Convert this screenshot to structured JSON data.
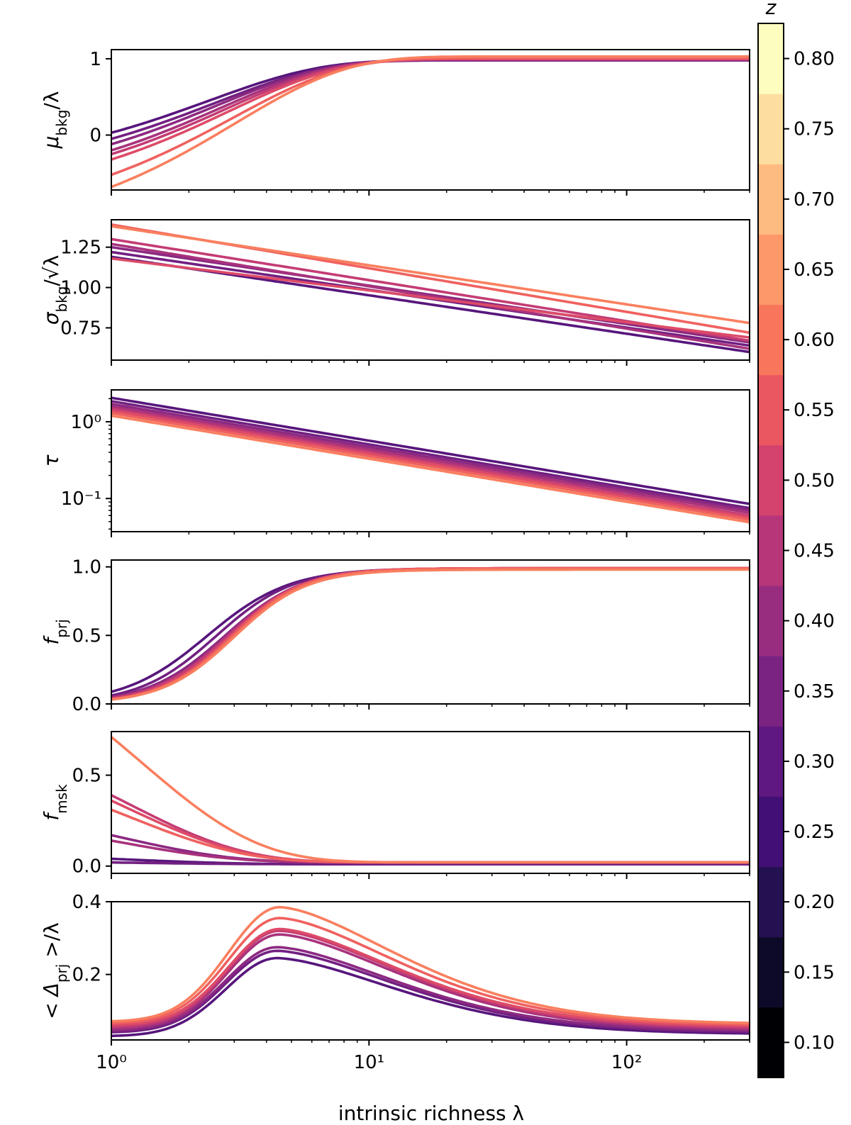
{
  "chart_data": {
    "type": "line",
    "title": "",
    "xlabel": "intrinsic richness λ",
    "xscale": "log",
    "xlim": [
      1,
      300
    ],
    "x_ticks": [
      {
        "value": 1,
        "base": "10",
        "exp": "0"
      },
      {
        "value": 10,
        "base": "10",
        "exp": "1"
      },
      {
        "value": 100,
        "base": "10",
        "exp": "2"
      }
    ],
    "colorbar": {
      "label": "z",
      "range": [
        0.075,
        0.825
      ],
      "ticks": [
        {
          "value": 0.1,
          "label": "0.10"
        },
        {
          "value": 0.15,
          "label": "0.15"
        },
        {
          "value": 0.2,
          "label": "0.20"
        },
        {
          "value": 0.25,
          "label": "0.25"
        },
        {
          "value": 0.3,
          "label": "0.30"
        },
        {
          "value": 0.35,
          "label": "0.35"
        },
        {
          "value": 0.4,
          "label": "0.40"
        },
        {
          "value": 0.45,
          "label": "0.45"
        },
        {
          "value": 0.5,
          "label": "0.50"
        },
        {
          "value": 0.55,
          "label": "0.55"
        },
        {
          "value": 0.6,
          "label": "0.60"
        },
        {
          "value": 0.65,
          "label": "0.65"
        },
        {
          "value": 0.7,
          "label": "0.70"
        },
        {
          "value": 0.75,
          "label": "0.75"
        },
        {
          "value": 0.8,
          "label": "0.80"
        }
      ],
      "colors": [
        "#000004",
        "#0d0a29",
        "#231151",
        "#410f75",
        "#5f187f",
        "#7b2382",
        "#982d80",
        "#b63679",
        "#d3436e",
        "#eb5760",
        "#f8765c",
        "#fd9869",
        "#febb81",
        "#fddea0",
        "#fcfdbf"
      ]
    },
    "series_z": [
      0.275,
      0.325,
      0.375,
      0.425,
      0.475,
      0.525,
      0.575,
      0.625
    ],
    "panels": [
      {
        "id": "mu_bkg",
        "ylabel": {
          "main": "μ",
          "sub": "bkg",
          "tail": "/λ"
        },
        "yscale": "linear",
        "ylim": [
          -0.72,
          1.12
        ],
        "yticks": [
          {
            "value": 0,
            "label": "0"
          },
          {
            "value": 1,
            "label": "1"
          }
        ],
        "model": "exp_approach",
        "series": [
          {
            "z": 0.275,
            "start": 0.03,
            "end": 0.98,
            "k": 0.42
          },
          {
            "z": 0.325,
            "start": -0.05,
            "end": 0.98,
            "k": 0.4
          },
          {
            "z": 0.375,
            "start": -0.12,
            "end": 0.99,
            "k": 0.39
          },
          {
            "z": 0.425,
            "start": -0.2,
            "end": 0.99,
            "k": 0.38
          },
          {
            "z": 0.475,
            "start": -0.25,
            "end": 1.0,
            "k": 0.36
          },
          {
            "z": 0.525,
            "start": -0.32,
            "end": 1.0,
            "k": 0.35
          },
          {
            "z": 0.575,
            "start": -0.52,
            "end": 1.01,
            "k": 0.34
          },
          {
            "z": 0.625,
            "start": -0.68,
            "end": 1.03,
            "k": 0.33
          }
        ]
      },
      {
        "id": "sigma_bkg",
        "ylabel": {
          "main": "σ",
          "sub": "bkg",
          "tail": "/√λ"
        },
        "yscale": "linear",
        "ylim": [
          0.55,
          1.42
        ],
        "yticks": [
          {
            "value": 0.75,
            "label": "0.75"
          },
          {
            "value": 1.0,
            "label": "1.00"
          },
          {
            "value": 1.25,
            "label": "1.25"
          }
        ],
        "model": "linear_log",
        "series": [
          {
            "z": 0.275,
            "start": 1.19,
            "end": 0.6
          },
          {
            "z": 0.325,
            "start": 1.22,
            "end": 0.64
          },
          {
            "z": 0.375,
            "start": 1.25,
            "end": 0.66
          },
          {
            "z": 0.425,
            "start": 1.27,
            "end": 0.62
          },
          {
            "z": 0.475,
            "start": 1.3,
            "end": 0.67
          },
          {
            "z": 0.525,
            "start": 1.18,
            "end": 0.69
          },
          {
            "z": 0.575,
            "start": 1.39,
            "end": 0.72
          },
          {
            "z": 0.625,
            "start": 1.38,
            "end": 0.78
          }
        ]
      },
      {
        "id": "tau",
        "ylabel": {
          "main": "τ",
          "sub": "",
          "tail": ""
        },
        "yscale": "log",
        "ylim": [
          0.037,
          2.6
        ],
        "yticks": [
          {
            "value": 1,
            "base": "10",
            "exp": "0"
          },
          {
            "value": 0.1,
            "base": "10",
            "exp": "−1"
          }
        ],
        "model": "power",
        "series": [
          {
            "z": 0.275,
            "start": 2.05,
            "end": 0.085
          },
          {
            "z": 0.325,
            "start": 1.85,
            "end": 0.075
          },
          {
            "z": 0.375,
            "start": 1.7,
            "end": 0.07
          },
          {
            "z": 0.425,
            "start": 1.58,
            "end": 0.065
          },
          {
            "z": 0.475,
            "start": 1.48,
            "end": 0.06
          },
          {
            "z": 0.525,
            "start": 1.4,
            "end": 0.057
          },
          {
            "z": 0.575,
            "start": 1.3,
            "end": 0.053
          },
          {
            "z": 0.625,
            "start": 1.2,
            "end": 0.049
          }
        ]
      },
      {
        "id": "f_prj",
        "ylabel": {
          "main": "f",
          "sub": "prj",
          "tail": ""
        },
        "yscale": "linear",
        "ylim": [
          0,
          1.05
        ],
        "yticks": [
          {
            "value": 0.0,
            "label": "0.0"
          },
          {
            "value": 0.5,
            "label": "0.5"
          },
          {
            "value": 1.0,
            "label": "1.0"
          }
        ],
        "model": "logistic",
        "series": [
          {
            "z": 0.275,
            "mid": 2.35,
            "width": 0.16,
            "top": 0.99
          },
          {
            "z": 0.325,
            "mid": 2.55,
            "width": 0.15,
            "top": 0.99
          },
          {
            "z": 0.375,
            "mid": 2.75,
            "width": 0.15,
            "top": 0.99
          },
          {
            "z": 0.425,
            "mid": 2.8,
            "width": 0.145,
            "top": 0.99
          },
          {
            "z": 0.475,
            "mid": 2.85,
            "width": 0.145,
            "top": 0.99
          },
          {
            "z": 0.525,
            "mid": 2.9,
            "width": 0.14,
            "top": 0.99
          },
          {
            "z": 0.575,
            "mid": 2.95,
            "width": 0.14,
            "top": 0.99
          },
          {
            "z": 0.625,
            "mid": 3.0,
            "width": 0.14,
            "top": 0.98
          }
        ]
      },
      {
        "id": "f_msk",
        "ylabel": {
          "main": "f",
          "sub": "msk",
          "tail": ""
        },
        "yscale": "linear",
        "ylim": [
          -0.04,
          0.74
        ],
        "yticks": [
          {
            "value": 0.0,
            "label": "0.0"
          },
          {
            "value": 0.5,
            "label": "0.5"
          }
        ],
        "model": "exp_decay",
        "series": [
          {
            "z": 0.275,
            "start": 0.04,
            "end": 0.01,
            "k": 0.9
          },
          {
            "z": 0.325,
            "start": 0.02,
            "end": 0.01,
            "k": 0.9
          },
          {
            "z": 0.375,
            "start": 0.17,
            "end": 0.02,
            "k": 0.95
          },
          {
            "z": 0.425,
            "start": 0.14,
            "end": 0.02,
            "k": 0.95
          },
          {
            "z": 0.475,
            "start": 0.39,
            "end": 0.02,
            "k": 0.85
          },
          {
            "z": 0.525,
            "start": 0.36,
            "end": 0.02,
            "k": 0.85
          },
          {
            "z": 0.575,
            "start": 0.31,
            "end": 0.02,
            "k": 0.85
          },
          {
            "z": 0.625,
            "start": 0.71,
            "end": 0.02,
            "k": 0.75
          }
        ]
      },
      {
        "id": "delta_prj",
        "ylabel": {
          "main": "< Δ",
          "sub": "prj",
          "tail": " >/λ"
        },
        "yscale": "linear",
        "ylim": [
          0.02,
          0.4
        ],
        "yticks": [
          {
            "value": 0.2,
            "label": "0.2"
          },
          {
            "value": 0.4,
            "label": "0.4"
          }
        ],
        "model": "hump",
        "series": [
          {
            "z": 0.275,
            "start": 0.03,
            "peak": 0.245,
            "peak_x": 4.4,
            "end": 0.036
          },
          {
            "z": 0.325,
            "start": 0.04,
            "peak": 0.265,
            "peak_x": 4.4,
            "end": 0.04
          },
          {
            "z": 0.375,
            "start": 0.045,
            "peak": 0.275,
            "peak_x": 4.4,
            "end": 0.044
          },
          {
            "z": 0.425,
            "start": 0.05,
            "peak": 0.31,
            "peak_x": 4.5,
            "end": 0.048
          },
          {
            "z": 0.475,
            "start": 0.055,
            "peak": 0.32,
            "peak_x": 4.5,
            "end": 0.052
          },
          {
            "z": 0.525,
            "start": 0.06,
            "peak": 0.325,
            "peak_x": 4.5,
            "end": 0.056
          },
          {
            "z": 0.575,
            "start": 0.065,
            "peak": 0.355,
            "peak_x": 4.5,
            "end": 0.06
          },
          {
            "z": 0.625,
            "start": 0.07,
            "peak": 0.385,
            "peak_x": 4.5,
            "end": 0.064
          }
        ]
      }
    ]
  }
}
